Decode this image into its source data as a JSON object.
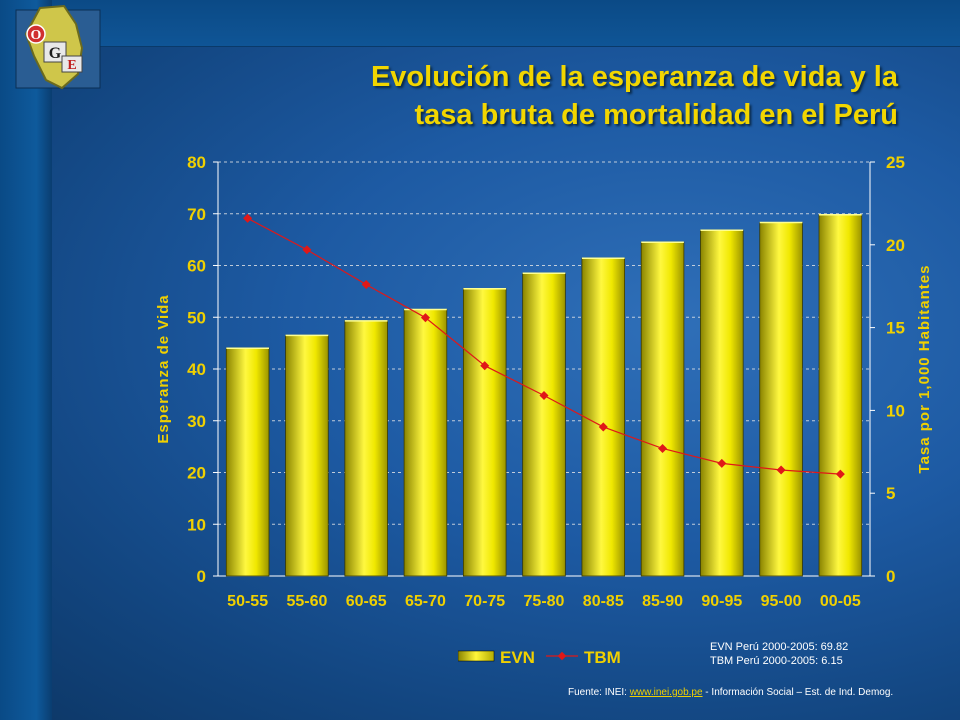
{
  "title": {
    "line1": "Evolución de la esperanza de vida y la",
    "line2": "tasa bruta de mortalidad en el Perú"
  },
  "logo": {
    "letters": [
      "O",
      "G",
      "E"
    ]
  },
  "chart_data": {
    "type": "bar+line",
    "categories": [
      "50-55",
      "55-60",
      "60-65",
      "65-70",
      "70-75",
      "75-80",
      "80-85",
      "85-90",
      "90-95",
      "95-00",
      "00-05"
    ],
    "series": [
      {
        "name": "EVN",
        "type": "bar",
        "axis": "left",
        "values": [
          44.0,
          46.5,
          49.3,
          51.5,
          55.5,
          58.5,
          61.4,
          64.5,
          66.8,
          68.3,
          69.8
        ]
      },
      {
        "name": "TBM",
        "type": "line",
        "axis": "right",
        "values": [
          21.6,
          19.7,
          17.6,
          15.6,
          12.7,
          10.9,
          9.0,
          7.7,
          6.8,
          6.4,
          6.15
        ]
      }
    ],
    "ylabel_left": "Esperanza de Vida",
    "ylabel_right": "Tasa por 1,000 Habitantes",
    "ylim_left": [
      0,
      80
    ],
    "ylim_right": [
      0,
      25
    ],
    "yticks_left": [
      0,
      10,
      20,
      30,
      40,
      50,
      60,
      70,
      80
    ],
    "yticks_right": [
      0,
      5,
      10,
      15,
      20,
      25
    ],
    "grid": true,
    "legend_position": "bottom",
    "colors": {
      "bar": "#f0e800",
      "bar_dark": "#8a8400",
      "line": "#e01818",
      "axis_text": "#f0d000",
      "grid": "#e8e8e8"
    }
  },
  "notes": {
    "evn": "EVN Perú 2000-2005:  69.82",
    "tbm": "TBM Perú 2000-2005:  6.15"
  },
  "source": {
    "prefix": "Fuente: INEI:  ",
    "link": "www.inei.gob.pe",
    "suffix": " - Información Social – Est. de Ind. Demog."
  }
}
